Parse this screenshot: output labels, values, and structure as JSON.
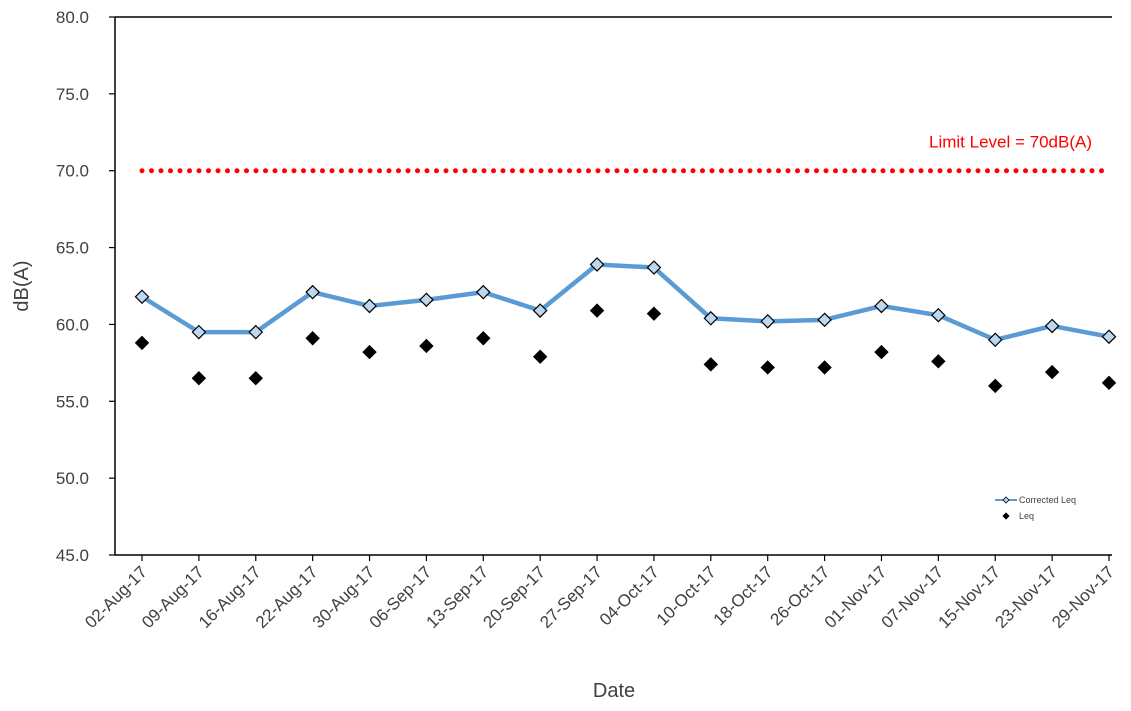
{
  "chart_data": {
    "type": "line",
    "title": "",
    "xlabel": "Date",
    "ylabel": "dB(A)",
    "ylim": [
      45.0,
      80.0
    ],
    "yticks": [
      "45.0",
      "50.0",
      "55.0",
      "60.0",
      "65.0",
      "70.0",
      "75.0",
      "80.0"
    ],
    "categories": [
      "02-Aug-17",
      "09-Aug-17",
      "16-Aug-17",
      "22-Aug-17",
      "30-Aug-17",
      "06-Sep-17",
      "13-Sep-17",
      "20-Sep-17",
      "27-Sep-17",
      "04-Oct-17",
      "10-Oct-17",
      "18-Oct-17",
      "26-Oct-17",
      "01-Nov-17",
      "07-Nov-17",
      "15-Nov-17",
      "23-Nov-17",
      "29-Nov-17"
    ],
    "series": [
      {
        "name": "Corrected Leq",
        "style": "line+diamond",
        "color": "#5b9bd5",
        "values": [
          61.8,
          59.5,
          59.5,
          62.1,
          61.2,
          61.6,
          62.1,
          60.9,
          63.9,
          63.7,
          60.4,
          60.2,
          60.3,
          61.2,
          60.6,
          59.0,
          59.9,
          59.2
        ]
      },
      {
        "name": "Leq",
        "style": "diamond",
        "color": "#000000",
        "values": [
          58.8,
          56.5,
          56.5,
          59.1,
          58.2,
          58.6,
          59.1,
          57.9,
          60.9,
          60.7,
          57.4,
          57.2,
          57.2,
          58.2,
          57.6,
          56.0,
          56.9,
          56.2
        ]
      }
    ],
    "limit": {
      "value": 70.0,
      "label": "Limit Level = 70dB(A)",
      "color": "#ff0000"
    },
    "legend": {
      "position": "bottom-right",
      "entries": [
        "Corrected Leq",
        "Leq"
      ]
    },
    "grid": false
  }
}
